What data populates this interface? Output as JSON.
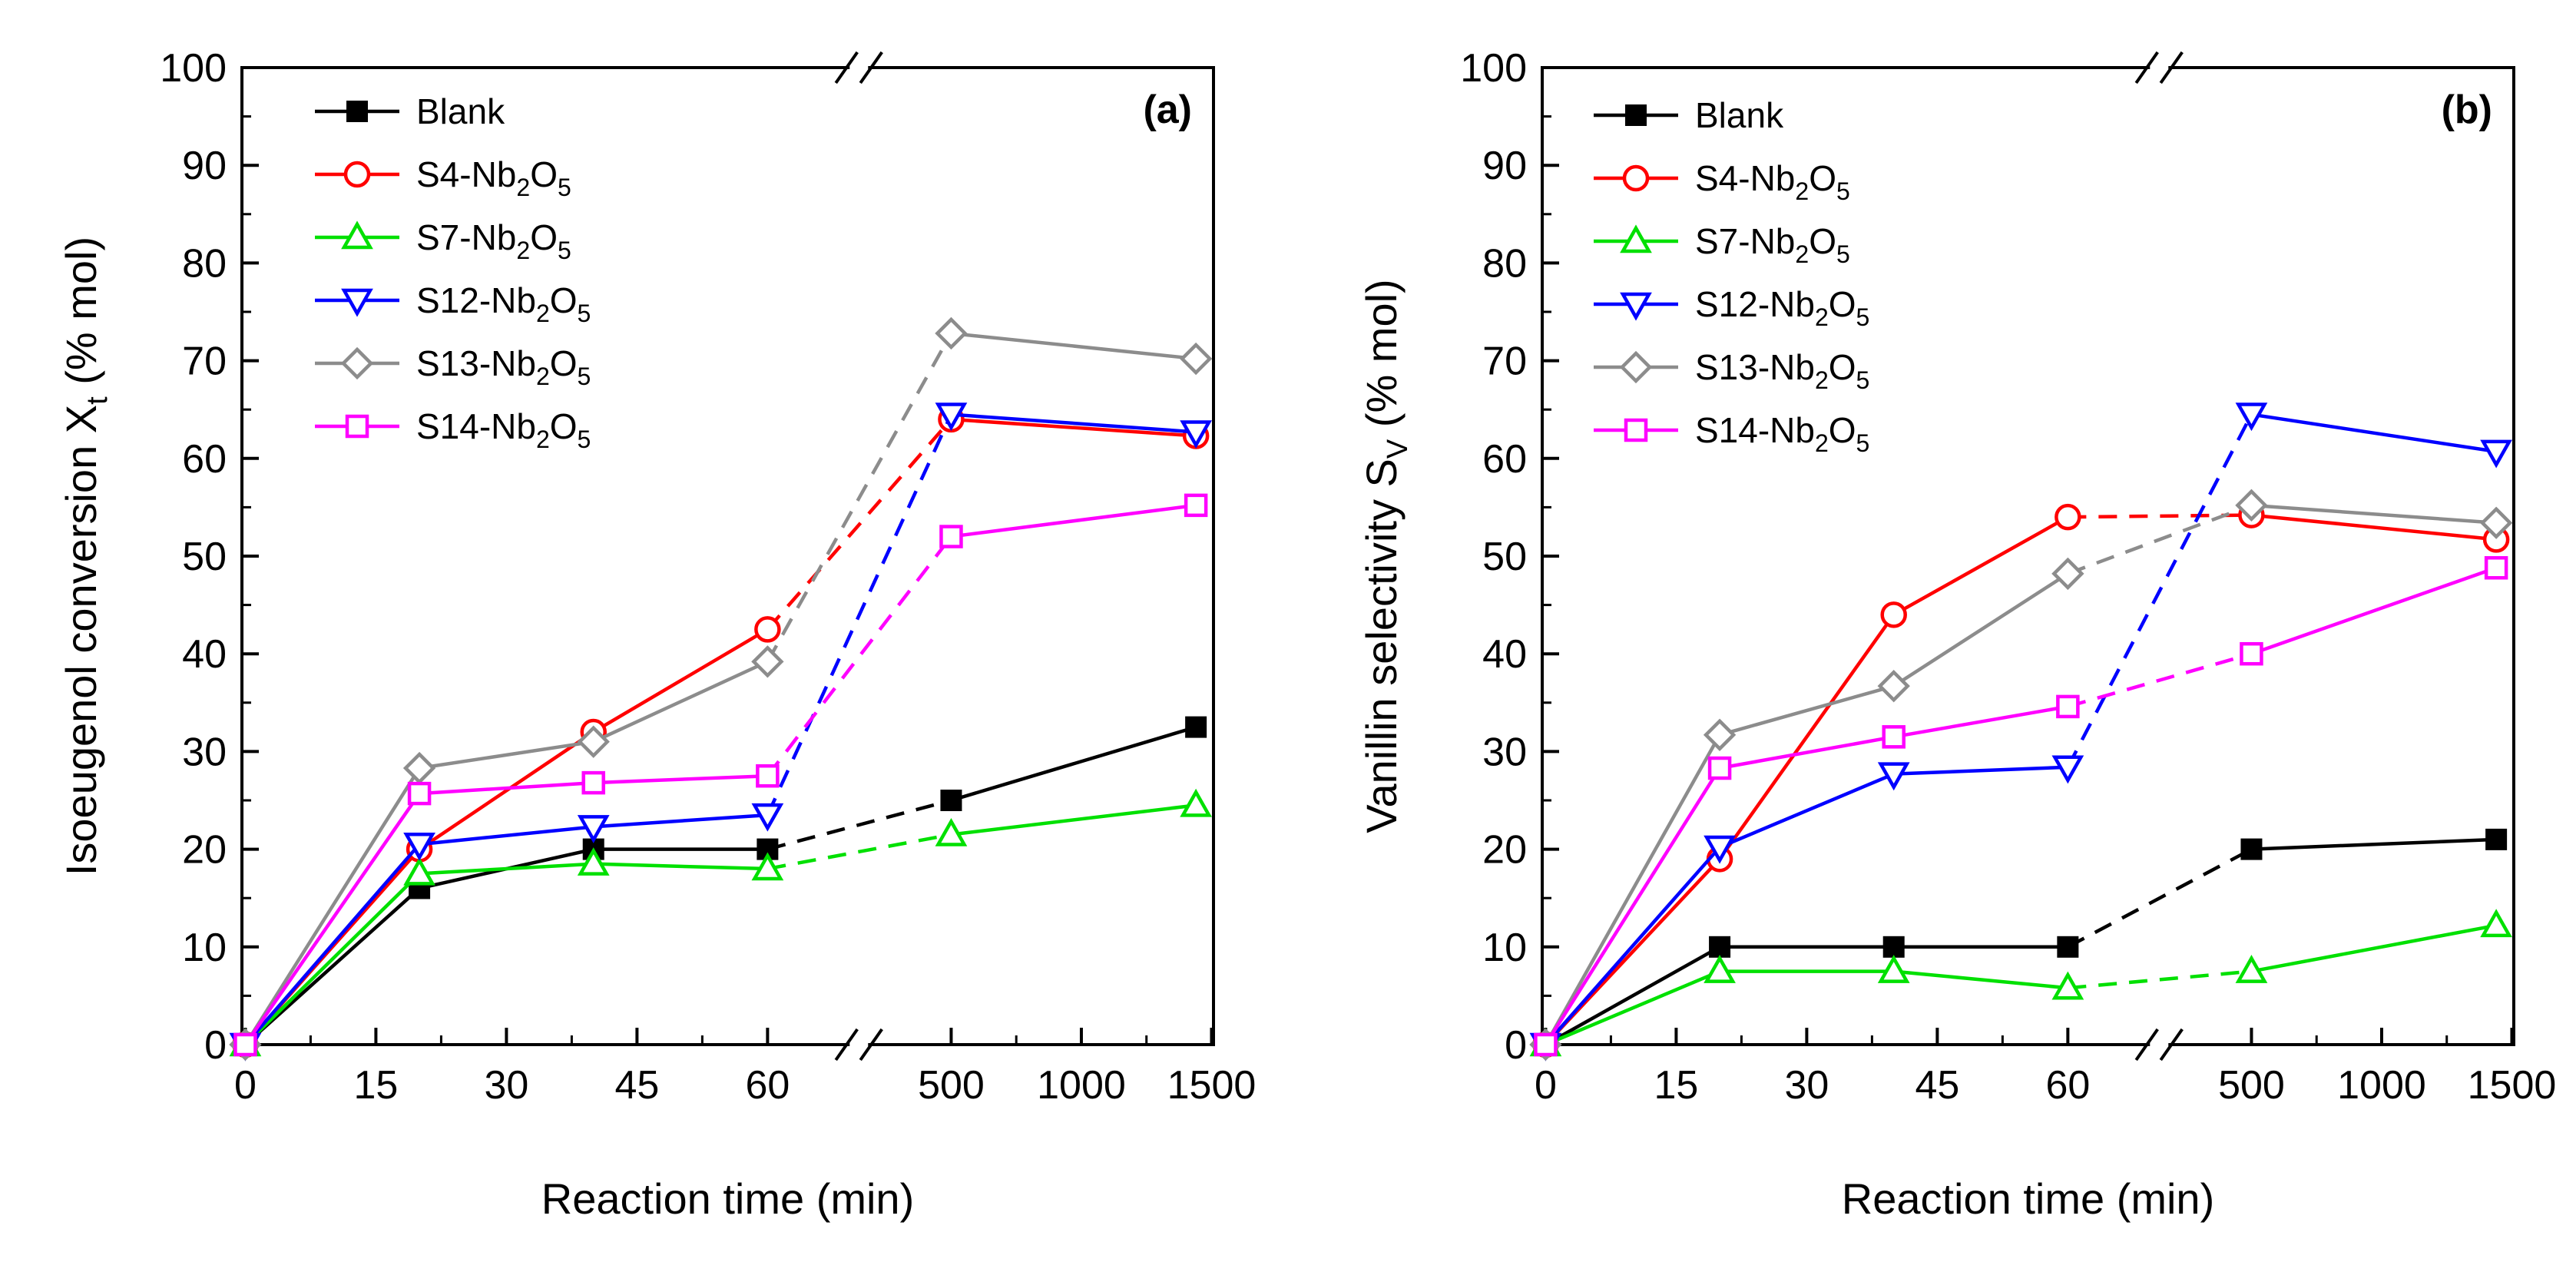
{
  "chart_data": [
    {
      "type": "line",
      "panel_label": "(a)",
      "ylabel": "Isoeugenol conversion X",
      "ylabel_sub": "t",
      "ylabel_unit": " (% mol)",
      "xlabel": "Reaction time (min)",
      "ylim": [
        0,
        100
      ],
      "yticks": [
        "0",
        "10",
        "20",
        "30",
        "40",
        "50",
        "60",
        "70",
        "80",
        "90",
        "100"
      ],
      "xticks": [
        "0",
        "15",
        "30",
        "45",
        "60",
        "500",
        "1000",
        "1500"
      ],
      "x_break": "broken x-axis between 60 and 500 min",
      "series": [
        {
          "name": "Blank",
          "prefix": "Blank",
          "sub1": "",
          "mid": "",
          "sub2": "",
          "color": "#000000",
          "marker": "square-filled",
          "values": [
            {
              "t": 0,
              "y": 0
            },
            {
              "t": 20,
              "y": 16
            },
            {
              "t": 40,
              "y": 20
            },
            {
              "t": 60,
              "y": 20
            },
            {
              "t": 500,
              "y": 25
            },
            {
              "t": 1440,
              "y": 32.5
            }
          ]
        },
        {
          "name": "S4-Nb2O5",
          "prefix": "S4-Nb",
          "sub1": "2",
          "mid": "O",
          "sub2": "5",
          "color": "#ff0000",
          "marker": "circle",
          "values": [
            {
              "t": 0,
              "y": 0
            },
            {
              "t": 20,
              "y": 20
            },
            {
              "t": 40,
              "y": 32
            },
            {
              "t": 60,
              "y": 42.5
            },
            {
              "t": 500,
              "y": 64
            },
            {
              "t": 1440,
              "y": 62.3
            }
          ]
        },
        {
          "name": "S7-Nb2O5",
          "prefix": "S7-Nb",
          "sub1": "2",
          "mid": "O",
          "sub2": "5",
          "color": "#00e000",
          "marker": "triangle-up",
          "values": [
            {
              "t": 0,
              "y": 0
            },
            {
              "t": 20,
              "y": 17.5
            },
            {
              "t": 40,
              "y": 18.5
            },
            {
              "t": 60,
              "y": 18
            },
            {
              "t": 500,
              "y": 21.5
            },
            {
              "t": 1440,
              "y": 24.5
            }
          ]
        },
        {
          "name": "S12-Nb2O5",
          "prefix": "S12-Nb",
          "sub1": "2",
          "mid": "O",
          "sub2": "5",
          "color": "#0000ff",
          "marker": "triangle-down",
          "values": [
            {
              "t": 0,
              "y": 0
            },
            {
              "t": 20,
              "y": 20.5
            },
            {
              "t": 40,
              "y": 22.3
            },
            {
              "t": 60,
              "y": 23.5
            },
            {
              "t": 500,
              "y": 64.5
            },
            {
              "t": 1440,
              "y": 62.7
            }
          ]
        },
        {
          "name": "S13-Nb2O5",
          "prefix": "S13-Nb",
          "sub1": "2",
          "mid": "O",
          "sub2": "5",
          "color": "#8c8c8c",
          "marker": "diamond",
          "values": [
            {
              "t": 0,
              "y": 0
            },
            {
              "t": 20,
              "y": 28.3
            },
            {
              "t": 40,
              "y": 31
            },
            {
              "t": 60,
              "y": 39.2
            },
            {
              "t": 500,
              "y": 72.8
            },
            {
              "t": 1440,
              "y": 70.2
            }
          ]
        },
        {
          "name": "S14-Nb2O5",
          "prefix": "S14-Nb",
          "sub1": "2",
          "mid": "O",
          "sub2": "5",
          "color": "#ff00ff",
          "marker": "square",
          "values": [
            {
              "t": 0,
              "y": 0
            },
            {
              "t": 20,
              "y": 25.7
            },
            {
              "t": 40,
              "y": 26.8
            },
            {
              "t": 60,
              "y": 27.5
            },
            {
              "t": 500,
              "y": 52
            },
            {
              "t": 1440,
              "y": 55.2
            }
          ]
        }
      ]
    },
    {
      "type": "line",
      "panel_label": "(b)",
      "ylabel": "Vanillin selectivity S",
      "ylabel_sub": "V",
      "ylabel_unit": " (% mol)",
      "xlabel": "Reaction time (min)",
      "ylim": [
        0,
        100
      ],
      "yticks": [
        "0",
        "10",
        "20",
        "30",
        "40",
        "50",
        "60",
        "70",
        "80",
        "90",
        "100"
      ],
      "xticks": [
        "0",
        "15",
        "30",
        "45",
        "60",
        "500",
        "1000",
        "1500"
      ],
      "x_break": "broken x-axis between 60 and 500 min",
      "series": [
        {
          "name": "Blank",
          "prefix": "Blank",
          "sub1": "",
          "mid": "",
          "sub2": "",
          "color": "#000000",
          "marker": "square-filled",
          "values": [
            {
              "t": 0,
              "y": 0
            },
            {
              "t": 20,
              "y": 10
            },
            {
              "t": 40,
              "y": 10
            },
            {
              "t": 60,
              "y": 10
            },
            {
              "t": 500,
              "y": 20
            },
            {
              "t": 1440,
              "y": 21
            }
          ]
        },
        {
          "name": "S4-Nb2O5",
          "prefix": "S4-Nb",
          "sub1": "2",
          "mid": "O",
          "sub2": "5",
          "color": "#ff0000",
          "marker": "circle",
          "values": [
            {
              "t": 0,
              "y": 0
            },
            {
              "t": 20,
              "y": 19
            },
            {
              "t": 40,
              "y": 44
            },
            {
              "t": 60,
              "y": 54
            },
            {
              "t": 500,
              "y": 54.2
            },
            {
              "t": 1440,
              "y": 51.7
            }
          ]
        },
        {
          "name": "S7-Nb2O5",
          "prefix": "S7-Nb",
          "sub1": "2",
          "mid": "O",
          "sub2": "5",
          "color": "#00e000",
          "marker": "triangle-up",
          "values": [
            {
              "t": 0,
              "y": 0
            },
            {
              "t": 20,
              "y": 7.5
            },
            {
              "t": 40,
              "y": 7.5
            },
            {
              "t": 60,
              "y": 5.8
            },
            {
              "t": 500,
              "y": 7.5
            },
            {
              "t": 1440,
              "y": 12.2
            }
          ]
        },
        {
          "name": "S12-Nb2O5",
          "prefix": "S12-Nb",
          "sub1": "2",
          "mid": "O",
          "sub2": "5",
          "color": "#0000ff",
          "marker": "triangle-down",
          "values": [
            {
              "t": 0,
              "y": 0
            },
            {
              "t": 20,
              "y": 20.2
            },
            {
              "t": 40,
              "y": 27.7
            },
            {
              "t": 60,
              "y": 28.4
            },
            {
              "t": 500,
              "y": 64.5
            },
            {
              "t": 1440,
              "y": 60.7
            }
          ]
        },
        {
          "name": "S13-Nb2O5",
          "prefix": "S13-Nb",
          "sub1": "2",
          "mid": "O",
          "sub2": "5",
          "color": "#8c8c8c",
          "marker": "diamond",
          "values": [
            {
              "t": 0,
              "y": 0
            },
            {
              "t": 20,
              "y": 31.7
            },
            {
              "t": 40,
              "y": 36.7
            },
            {
              "t": 60,
              "y": 48.2
            },
            {
              "t": 500,
              "y": 55.2
            },
            {
              "t": 1440,
              "y": 53.4
            }
          ]
        },
        {
          "name": "S14-Nb2O5",
          "prefix": "S14-Nb",
          "sub1": "2",
          "mid": "O",
          "sub2": "5",
          "color": "#ff00ff",
          "marker": "square",
          "values": [
            {
              "t": 0,
              "y": 0
            },
            {
              "t": 20,
              "y": 28.3
            },
            {
              "t": 40,
              "y": 31.5
            },
            {
              "t": 60,
              "y": 34.6
            },
            {
              "t": 500,
              "y": 40
            },
            {
              "t": 1440,
              "y": 48.8
            }
          ]
        }
      ]
    }
  ]
}
